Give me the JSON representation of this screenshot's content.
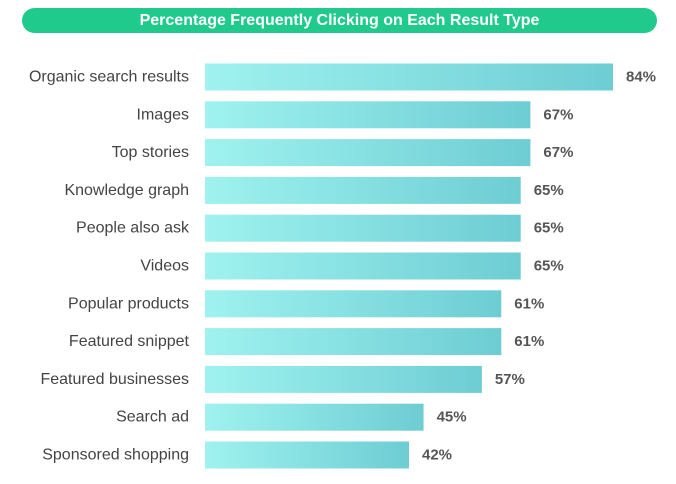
{
  "chart_data": {
    "type": "bar",
    "orientation": "horizontal",
    "title": "Percentage Frequently Clicking on Each Result Type",
    "categories": [
      "Organic search results",
      "Images",
      "Top stories",
      "Knowledge graph",
      "People also ask",
      "Videos",
      "Popular products",
      "Featured snippet",
      "Featured businesses",
      "Search ad",
      "Sponsored shopping"
    ],
    "values": [
      84,
      67,
      67,
      65,
      65,
      65,
      61,
      61,
      57,
      45,
      42
    ],
    "value_labels": [
      "84%",
      "67%",
      "67%",
      "65%",
      "65%",
      "65%",
      "61%",
      "61%",
      "57%",
      "45%",
      "42%"
    ],
    "unit": "%",
    "xlim": [
      0,
      84
    ],
    "grid": false,
    "legend": "none"
  },
  "colors": {
    "title_banner": "#1fca8c",
    "title_text": "#ffffff",
    "bar_start": "#9ff2ef",
    "bar_end": "#6dcdd3",
    "category_text": "#444444",
    "value_text": "#555555"
  }
}
